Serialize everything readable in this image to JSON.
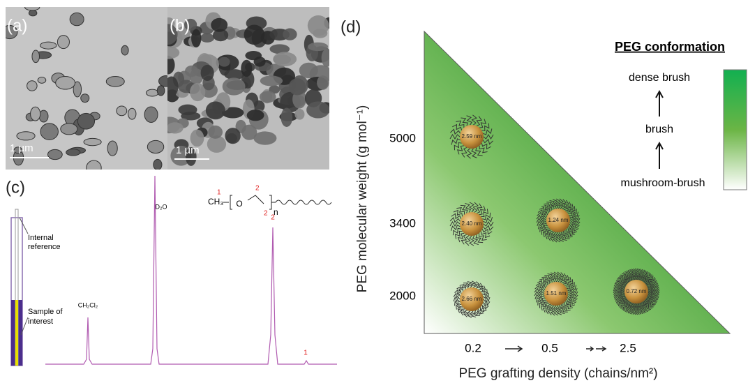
{
  "panels": {
    "a": {
      "label": "(a)",
      "scale_bar": "1 µm"
    },
    "b": {
      "label": "(b)",
      "scale_bar": "1 µm"
    },
    "c": {
      "label": "(c)",
      "tube_labels": [
        [
          "Internal",
          "reference"
        ],
        [
          "Sample of",
          "interest"
        ]
      ],
      "peaks": [
        "CH₂Cl₂",
        "D₂O",
        "2",
        "1"
      ],
      "structure": {
        "ch3": "CH₃",
        "o": "O",
        "n": "n",
        "numbers": [
          "1",
          "2",
          "2"
        ]
      }
    },
    "d": {
      "label": "(d)",
      "y_label": "PEG molecular weight (g mol⁻¹)",
      "x_label": "PEG grafting density (chains/nm²)",
      "y_ticks": [
        "5000",
        "3400",
        "2000"
      ],
      "x_ticks": [
        "0.2",
        "0.5",
        "2.5"
      ],
      "particles": [
        "2.59 nm",
        "2.40 nm",
        "1.24 nm",
        "2.66 nm",
        "1.51 nm",
        "0.72 nm"
      ],
      "legend": {
        "title": "PEG conformation",
        "levels": [
          "dense brush",
          "brush",
          "mushroom-brush"
        ]
      }
    }
  }
}
